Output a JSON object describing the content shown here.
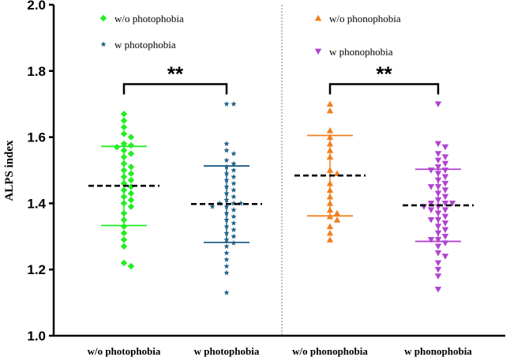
{
  "chart_data": {
    "type": "scatter",
    "ylabel": "ALPS index",
    "ylim": [
      1.0,
      2.0
    ],
    "yticks": [
      "1.0",
      "1.2",
      "1.4",
      "1.6",
      "1.8",
      "2.0"
    ],
    "categories": [
      "w/o photophobia",
      "w photophobia",
      "w/o phonophobia",
      "w phonophobia"
    ],
    "legend": [
      {
        "label": "w/o photophobia",
        "group": 0
      },
      {
        "label": "w photophobia",
        "group": 1
      },
      {
        "label": "w/o phonophobia",
        "group": 2
      },
      {
        "label": "w phonophobia",
        "group": 3
      }
    ],
    "significance": [
      {
        "groups": [
          0,
          1
        ],
        "label": "**",
        "y": 1.76
      },
      {
        "groups": [
          2,
          3
        ],
        "label": "**",
        "y": 1.76
      }
    ],
    "series": [
      {
        "marker": "diamond",
        "color": "#22ee22",
        "mean": 1.453,
        "sd_low": 1.333,
        "sd_high": 1.572,
        "values": [
          1.67,
          1.65,
          1.63,
          1.61,
          1.6,
          1.58,
          1.575,
          1.57,
          1.56,
          1.55,
          1.54,
          1.52,
          1.51,
          1.5,
          1.49,
          1.48,
          1.47,
          1.46,
          1.45,
          1.44,
          1.43,
          1.42,
          1.41,
          1.4,
          1.39,
          1.37,
          1.35,
          1.33,
          1.31,
          1.29,
          1.27,
          1.22,
          1.21
        ]
      },
      {
        "marker": "star",
        "color": "#1f5f86",
        "mean": 1.398,
        "sd_low": 1.282,
        "sd_high": 1.513,
        "values": [
          1.7,
          1.7,
          1.58,
          1.56,
          1.55,
          1.53,
          1.52,
          1.51,
          1.5,
          1.49,
          1.48,
          1.47,
          1.46,
          1.45,
          1.44,
          1.43,
          1.42,
          1.41,
          1.4,
          1.4,
          1.4,
          1.39,
          1.39,
          1.38,
          1.37,
          1.36,
          1.35,
          1.34,
          1.33,
          1.32,
          1.31,
          1.3,
          1.29,
          1.28,
          1.27,
          1.25,
          1.23,
          1.21,
          1.19,
          1.13
        ]
      },
      {
        "marker": "triangle-up",
        "color": "#f08020",
        "mean": 1.484,
        "sd_low": 1.362,
        "sd_high": 1.605,
        "values": [
          1.7,
          1.68,
          1.62,
          1.6,
          1.58,
          1.56,
          1.54,
          1.5,
          1.49,
          1.46,
          1.44,
          1.42,
          1.4,
          1.38,
          1.37,
          1.36,
          1.35,
          1.33,
          1.31,
          1.29
        ]
      },
      {
        "marker": "triangle-down",
        "color": "#b044d0",
        "mean": 1.394,
        "sd_low": 1.285,
        "sd_high": 1.503,
        "values": [
          1.7,
          1.58,
          1.57,
          1.55,
          1.54,
          1.53,
          1.52,
          1.51,
          1.5,
          1.5,
          1.49,
          1.48,
          1.47,
          1.46,
          1.45,
          1.45,
          1.44,
          1.43,
          1.42,
          1.41,
          1.4,
          1.4,
          1.4,
          1.39,
          1.39,
          1.38,
          1.38,
          1.37,
          1.36,
          1.35,
          1.35,
          1.34,
          1.33,
          1.32,
          1.31,
          1.3,
          1.29,
          1.29,
          1.28,
          1.27,
          1.25,
          1.24,
          1.22,
          1.2,
          1.18,
          1.14
        ]
      }
    ]
  }
}
